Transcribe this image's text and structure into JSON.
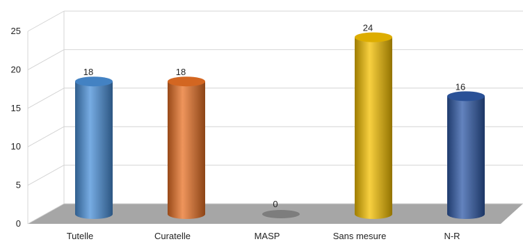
{
  "chart_data": {
    "type": "bar",
    "categories": [
      "Tutelle",
      "Curatelle",
      "MASP",
      "Sans mesure",
      "N-R"
    ],
    "values": [
      18,
      18,
      0,
      24,
      16
    ],
    "ylim": [
      0,
      25
    ],
    "yticks": [
      0,
      5,
      10,
      15,
      20,
      25
    ],
    "grid": true,
    "legend": "none",
    "style": "3d-cylinder",
    "colors": [
      "#4a90d9",
      "#ea7125",
      "#8a8a8a",
      "#f5c000",
      "#2f5aa8"
    ],
    "title": "",
    "xlabel": "",
    "ylabel": ""
  }
}
